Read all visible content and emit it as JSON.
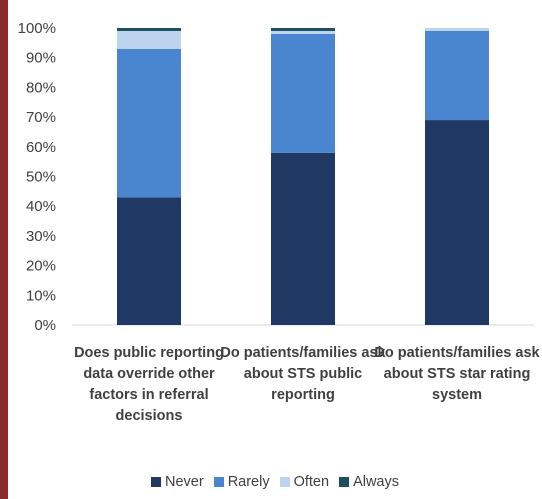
{
  "chart_data": {
    "type": "bar",
    "stacked": true,
    "categories": [
      "Does public reporting data override other factors in referral decisions",
      "Do patients/families ask about STS public reporting",
      "Do patients/families ask about STS star rating system"
    ],
    "category_lines": [
      [
        "Does public reporting",
        "data override other",
        "factors in referral",
        "decisions"
      ],
      [
        "Do patients/families ask",
        "about STS public",
        "reporting"
      ],
      [
        "Do patients/families ask",
        "about STS star rating",
        "system"
      ]
    ],
    "series": [
      {
        "name": "Never",
        "color": "#1f3864",
        "values": [
          43,
          58,
          69
        ]
      },
      {
        "name": "Rarely",
        "color": "#4a86d0",
        "values": [
          50,
          40,
          30
        ]
      },
      {
        "name": "Often",
        "color": "#bcd4ee",
        "values": [
          6,
          1,
          1
        ]
      },
      {
        "name": "Always",
        "color": "#1e4f5c",
        "values": [
          1,
          1,
          0
        ]
      }
    ],
    "ylim": [
      0,
      100
    ],
    "yticks": [
      "0%",
      "10%",
      "20%",
      "30%",
      "40%",
      "50%",
      "60%",
      "70%",
      "80%",
      "90%",
      "100%"
    ],
    "grid": false,
    "legend_position": "bottom"
  }
}
